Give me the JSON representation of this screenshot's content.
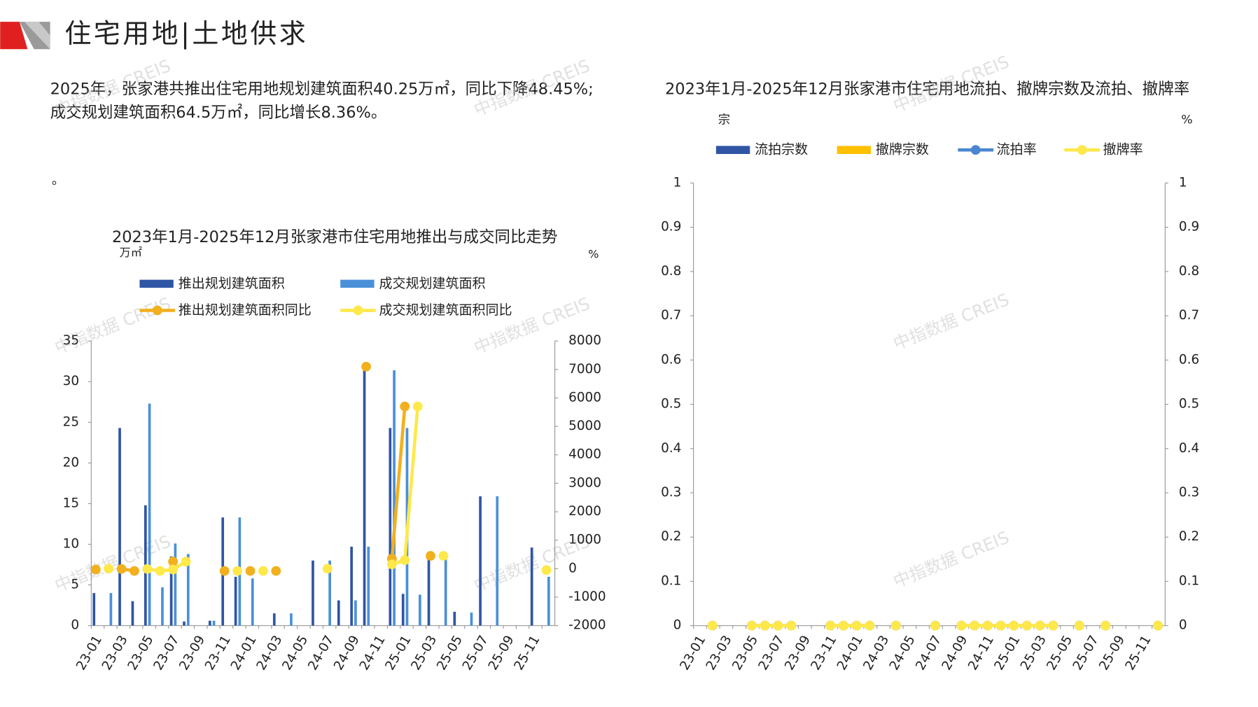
{
  "header": {
    "title": "住宅用地|土地供求"
  },
  "paragraph": {
    "text": "2025年，张家港共推出住宅用地规划建筑面积40.25万㎡，同比下降48.45%;成交规划建筑面积64.5万㎡，同比增长8.36%。",
    "note": "。"
  },
  "watermark": "中指数据 CREIS",
  "chart_data": [
    {
      "type": "bar",
      "title": "2023年1月-2025年12月张家港市住宅用地推出与成交同比走势",
      "y_label": "万㎡",
      "y2_label": "%",
      "categories": [
        "23-01",
        null,
        "23-03",
        null,
        "23-05",
        null,
        "23-07",
        null,
        "23-09",
        null,
        "23-11",
        null,
        "24-01",
        null,
        "24-03",
        null,
        "24-05",
        null,
        "24-07",
        null,
        "24-09",
        null,
        "24-11",
        null,
        "25-01",
        null,
        "25-03",
        null,
        "25-05",
        null,
        "25-07",
        null,
        "25-09",
        null,
        "25-11",
        null
      ],
      "ylim": [
        0,
        35
      ],
      "yticks": [
        0,
        5,
        10,
        15,
        20,
        25,
        30,
        35
      ],
      "y2lim": [
        -2000,
        8000
      ],
      "y2ticks": [
        -2000,
        -1000,
        0,
        1000,
        2000,
        3000,
        4000,
        5000,
        6000,
        7000,
        8000
      ],
      "series": [
        {
          "name": "推出规划建筑面积",
          "type": "bar",
          "color": "#2f55a4",
          "values": [
            4,
            0,
            24.3,
            3,
            14.8,
            0,
            8.5,
            0.5,
            0,
            0.6,
            13.3,
            6,
            0,
            0,
            1.5,
            0,
            0,
            8,
            0,
            3.1,
            9.7,
            31.8,
            0,
            24.3,
            3.9,
            0,
            8.5,
            0,
            1.7,
            0,
            15.9,
            0,
            0,
            0,
            9.6,
            0
          ]
        },
        {
          "name": "成交规划建筑面积",
          "type": "bar",
          "color": "#4a90d9",
          "values": [
            0,
            4,
            0,
            0,
            27.3,
            4.7,
            10.1,
            8.8,
            0,
            0.6,
            0,
            13.3,
            5.8,
            0,
            0,
            1.5,
            0,
            0,
            8,
            0,
            3.1,
            9.7,
            0,
            31.4,
            24.3,
            3.8,
            0,
            8.5,
            0,
            1.6,
            0,
            15.9,
            0,
            0,
            0,
            6
          ]
        },
        {
          "name": "推出规划建筑面积同比",
          "type": "line",
          "axis": "y2",
          "color": "#f2b01e",
          "values": [
            -30,
            null,
            -10,
            -80,
            null,
            null,
            250,
            null,
            null,
            null,
            -80,
            null,
            -80,
            null,
            -80,
            null,
            null,
            null,
            null,
            null,
            null,
            7100,
            null,
            350,
            5700,
            null,
            450,
            null,
            null,
            null,
            null,
            null,
            null,
            null,
            null,
            null
          ]
        },
        {
          "name": "成交规划建筑面积同比",
          "type": "line",
          "axis": "y2",
          "color": "#ffe84a",
          "values": [
            null,
            0,
            null,
            null,
            -10,
            -80,
            -30,
            250,
            null,
            null,
            null,
            -80,
            null,
            -80,
            null,
            null,
            null,
            null,
            0,
            null,
            null,
            null,
            null,
            150,
            300,
            5700,
            null,
            450,
            null,
            null,
            null,
            null,
            null,
            null,
            null,
            -50
          ]
        }
      ]
    },
    {
      "type": "bar",
      "title": "2023年1月-2025年12月张家港市住宅用地流拍、撤牌宗数及流拍、撤牌率",
      "y_label": "宗",
      "y2_label": "%",
      "categories": [
        "23-01",
        null,
        "23-03",
        null,
        "23-05",
        null,
        "23-07",
        null,
        "23-09",
        null,
        "23-11",
        null,
        "24-01",
        null,
        "24-03",
        null,
        "24-05",
        null,
        "24-07",
        null,
        "24-09",
        null,
        "24-11",
        null,
        "25-01",
        null,
        "25-03",
        null,
        "25-05",
        null,
        "25-07",
        null,
        "25-09",
        null,
        "25-11",
        null
      ],
      "ylim": [
        0,
        1
      ],
      "yticks": [
        0,
        0.1,
        0.2,
        0.3,
        0.4,
        0.5,
        0.6,
        0.7,
        0.8,
        0.9,
        1
      ],
      "y2lim": [
        0,
        1
      ],
      "y2ticks": [
        0,
        0.1,
        0.2,
        0.3,
        0.4,
        0.5,
        0.6,
        0.7,
        0.8,
        0.9,
        1
      ],
      "series": [
        {
          "name": "流拍宗数",
          "type": "bar",
          "color": "#2f55a4",
          "values": [
            null,
            0,
            null,
            null,
            0,
            0,
            0,
            0,
            null,
            null,
            0,
            0,
            0,
            0,
            null,
            0,
            null,
            null,
            0,
            null,
            0,
            0,
            0,
            0,
            0,
            0,
            0,
            0,
            null,
            0,
            null,
            0,
            null,
            null,
            null,
            0
          ]
        },
        {
          "name": "撤牌宗数",
          "type": "bar",
          "color": "#ffc000",
          "values": [
            null,
            0,
            null,
            null,
            0,
            0,
            0,
            0,
            null,
            null,
            0,
            0,
            0,
            0,
            null,
            0,
            null,
            null,
            0,
            null,
            0,
            0,
            0,
            0,
            0,
            0,
            0,
            0,
            null,
            0,
            null,
            0,
            null,
            null,
            null,
            0
          ]
        },
        {
          "name": "流拍率",
          "type": "line",
          "axis": "y2",
          "color": "#4a86d0",
          "values": [
            null,
            0,
            null,
            null,
            0,
            0,
            0,
            0,
            null,
            null,
            0,
            0,
            0,
            0,
            null,
            0,
            null,
            null,
            0,
            null,
            0,
            0,
            0,
            0,
            0,
            0,
            0,
            0,
            null,
            0,
            null,
            0,
            null,
            null,
            null,
            0
          ]
        },
        {
          "name": "撤牌率",
          "type": "line",
          "axis": "y2",
          "color": "#ffe84a",
          "values": [
            null,
            0,
            null,
            null,
            0,
            0,
            0,
            0,
            null,
            null,
            0,
            0,
            0,
            0,
            null,
            0,
            null,
            null,
            0,
            null,
            0,
            0,
            0,
            0,
            0,
            0,
            0,
            0,
            null,
            0,
            null,
            0,
            null,
            null,
            null,
            0
          ]
        }
      ]
    }
  ]
}
